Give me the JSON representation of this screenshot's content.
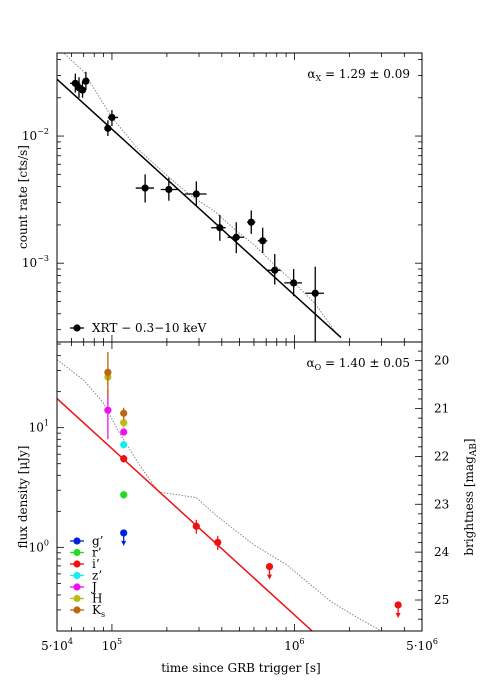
{
  "chart_data": [
    {
      "type": "scatter",
      "panel": "top",
      "ylabel": "count rate [cts/s]",
      "yscale": "log",
      "xscale": "log",
      "xlim": [
        50000,
        5000000
      ],
      "ylim": [
        0.00024,
        0.045
      ],
      "y_tick_labels": [
        {
          "value": 0.01,
          "label": "10",
          "exp": "−2"
        },
        {
          "value": 0.001,
          "label": "10",
          "exp": "−3"
        }
      ],
      "annotation": {
        "text": "α",
        "sub": "X",
        "rest": " = 1.29 ± 0.09"
      },
      "legend": {
        "position": "bottom-left",
        "entries": [
          {
            "label": "XRT − 0.3−10 keV",
            "color": "#000000"
          }
        ]
      },
      "series": [
        {
          "name": "XRT − 0.3−10 keV",
          "color": "#000000",
          "points": [
            {
              "x": 63000,
              "y": 0.026,
              "xerr": [
                4000,
                4000
              ],
              "yerr": [
                0.004,
                0.005
              ]
            },
            {
              "x": 66000,
              "y": 0.024,
              "xerr": [
                2500,
                3000
              ],
              "yerr": [
                0.004,
                0.005
              ]
            },
            {
              "x": 69000,
              "y": 0.023,
              "xerr": [
                2500,
                2500
              ],
              "yerr": [
                0.003,
                0.004
              ]
            },
            {
              "x": 72000,
              "y": 0.027,
              "xerr": [
                3000,
                3000
              ],
              "yerr": [
                0.004,
                0.005
              ]
            },
            {
              "x": 95000,
              "y": 0.0115,
              "xerr": [
                3000,
                3000
              ],
              "yerr": [
                0.0015,
                0.0018
              ]
            },
            {
              "x": 100000,
              "y": 0.014,
              "xerr": [
                5000,
                8000
              ],
              "yerr": [
                0.002,
                0.002
              ]
            },
            {
              "x": 152000,
              "y": 0.0039,
              "xerr": [
                17000,
                18000
              ],
              "yerr": [
                0.0009,
                0.0011
              ]
            },
            {
              "x": 205000,
              "y": 0.0038,
              "xerr": [
                20000,
                25000
              ],
              "yerr": [
                0.0007,
                0.0009
              ]
            },
            {
              "x": 290000,
              "y": 0.0035,
              "xerr": [
                40000,
                40000
              ],
              "yerr": [
                0.0007,
                0.0009
              ]
            },
            {
              "x": 390000,
              "y": 0.0019,
              "xerr": [
                40000,
                30000
              ],
              "yerr": [
                0.0004,
                0.0005
              ]
            },
            {
              "x": 480000,
              "y": 0.0016,
              "xerr": [
                50000,
                50000
              ],
              "yerr": [
                0.0004,
                0.0005
              ]
            },
            {
              "x": 580000,
              "y": 0.0021,
              "xerr": [
                30000,
                30000
              ],
              "yerr": [
                0.0004,
                0.0005
              ]
            },
            {
              "x": 670000,
              "y": 0.0015,
              "xerr": [
                40000,
                40000
              ],
              "yerr": [
                0.0003,
                0.0004
              ]
            },
            {
              "x": 780000,
              "y": 0.00088,
              "xerr": [
                70000,
                60000
              ],
              "yerr": [
                0.0002,
                0.0003
              ]
            },
            {
              "x": 990000,
              "y": 0.0007,
              "xerr": [
                110000,
                110000
              ],
              "yerr": [
                0.00015,
                0.0002
              ]
            },
            {
              "x": 1300000,
              "y": 0.00058,
              "xerr": [
                150000,
                150000
              ],
              "yerr": [
                0.00034,
                0.00036
              ]
            }
          ]
        }
      ],
      "fit_line": {
        "color": "#000000",
        "from": {
          "x": 50000,
          "y": 0.028
        },
        "to": {
          "x": 1800000,
          "y": 0.00026
        }
      },
      "model_curve": {
        "color": "#888888",
        "points": [
          [
            52000,
            0.048
          ],
          [
            70000,
            0.032
          ],
          [
            100000,
            0.014
          ],
          [
            140000,
            0.0078
          ],
          [
            200000,
            0.0049
          ],
          [
            270000,
            0.0034
          ],
          [
            360000,
            0.0026
          ],
          [
            480000,
            0.0018
          ],
          [
            600000,
            0.0014
          ],
          [
            760000,
            0.001
          ],
          [
            1000000,
            0.0007
          ],
          [
            1300000,
            0.00048
          ],
          [
            1700000,
            0.00028
          ]
        ]
      }
    },
    {
      "type": "scatter",
      "panel": "bottom",
      "xlabel": "time since GRB trigger [s]",
      "ylabel": "flux density [μJy]",
      "ylabel2": "brightness [mag",
      "ylabel2_sub": "AB",
      "ylabel2_end": "]",
      "yscale": "log",
      "xscale": "log",
      "xlim": [
        50000,
        5000000
      ],
      "ylim": [
        0.2,
        52
      ],
      "x_tick_labels": [
        {
          "value": 50000,
          "label": "5·10",
          "exp": "4"
        },
        {
          "value": 100000,
          "label": "10",
          "exp": "5"
        },
        {
          "value": 1000000,
          "label": "10",
          "exp": "6"
        },
        {
          "value": 5000000,
          "label": "5·10",
          "exp": "6"
        }
      ],
      "y_tick_labels": [
        {
          "value": 10,
          "label": "10",
          "exp": "1"
        },
        {
          "value": 1,
          "label": "10",
          "exp": "0"
        }
      ],
      "mag_tick_labels": [
        "20",
        "21",
        "22",
        "23",
        "24",
        "25"
      ],
      "annotation": {
        "text": "α",
        "sub": "O",
        "rest": " = 1.40 ± 0.05"
      },
      "legend": {
        "position": "bottom-left",
        "entries": [
          {
            "label": "g’",
            "color": "#0022dd"
          },
          {
            "label": "r’",
            "color": "#22dd22"
          },
          {
            "label": "i’",
            "color": "#ee1111"
          },
          {
            "label": "z’",
            "color": "#11eeee"
          },
          {
            "label": "J",
            "color": "#ee11ee"
          },
          {
            "label": "H",
            "color": "#bbbb11"
          },
          {
            "label": "K",
            "sub": "s",
            "color": "#bb6611"
          }
        ]
      },
      "series": [
        {
          "name": "g’",
          "color": "#0022dd",
          "points": [
            {
              "x": 116000,
              "y": 1.32,
              "upper": true
            }
          ]
        },
        {
          "name": "r’",
          "color": "#22dd22",
          "points": [
            {
              "x": 116000,
              "y": 2.75,
              "yerr": [
                0.2,
                0.2
              ]
            }
          ]
        },
        {
          "name": "i’",
          "color": "#ee1111",
          "points": [
            {
              "x": 116000,
              "y": 5.5,
              "yerr": [
                0.4,
                0.4
              ]
            },
            {
              "x": 290000,
              "y": 1.5,
              "yerr": [
                0.2,
                0.2
              ]
            },
            {
              "x": 380000,
              "y": 1.1,
              "yerr": [
                0.15,
                0.15
              ]
            },
            {
              "x": 730000,
              "y": 0.69,
              "upper": true
            },
            {
              "x": 3700000,
              "y": 0.33,
              "upper": true
            }
          ]
        },
        {
          "name": "z’",
          "color": "#11eeee",
          "points": [
            {
              "x": 116000,
              "y": 7.2,
              "yerr": [
                0.5,
                0.5
              ]
            }
          ]
        },
        {
          "name": "J",
          "color": "#ee11ee",
          "points": [
            {
              "x": 95000,
              "y": 14,
              "yerr": [
                6,
                7
              ]
            },
            {
              "x": 116000,
              "y": 9.2,
              "yerr": [
                0.6,
                0.6
              ]
            }
          ]
        },
        {
          "name": "H",
          "color": "#bbbb11",
          "points": [
            {
              "x": 95000,
              "y": 26.5,
              "yerr": [
                4,
                5
              ]
            },
            {
              "x": 116000,
              "y": 11,
              "yerr": [
                1,
                1
              ]
            }
          ]
        },
        {
          "name": "K",
          "color": "#bb6611",
          "points": [
            {
              "x": 95000,
              "y": 29,
              "yerr": [
                11,
                14
              ]
            },
            {
              "x": 116000,
              "y": 13.2,
              "yerr": [
                1.5,
                1.5
              ]
            }
          ]
        }
      ],
      "fit_line": {
        "color": "#ee1111",
        "from": {
          "x": 50000,
          "y": 17.5
        },
        "to": {
          "x": 1250000,
          "y": 0.2
        }
      },
      "model_curve": {
        "color": "#888888",
        "points": [
          [
            50000,
            37
          ],
          [
            70000,
            25
          ],
          [
            90000,
            16
          ],
          [
            110000,
            9
          ],
          [
            140000,
            5
          ],
          [
            180000,
            2.9
          ],
          [
            230000,
            2.75
          ],
          [
            290000,
            2.6
          ],
          [
            380000,
            1.8
          ],
          [
            600000,
            1.05
          ],
          [
            900000,
            0.72
          ],
          [
            1200000,
            0.5
          ],
          [
            1600000,
            0.35
          ],
          [
            2300000,
            0.25
          ],
          [
            3000000,
            0.2
          ]
        ]
      }
    }
  ]
}
